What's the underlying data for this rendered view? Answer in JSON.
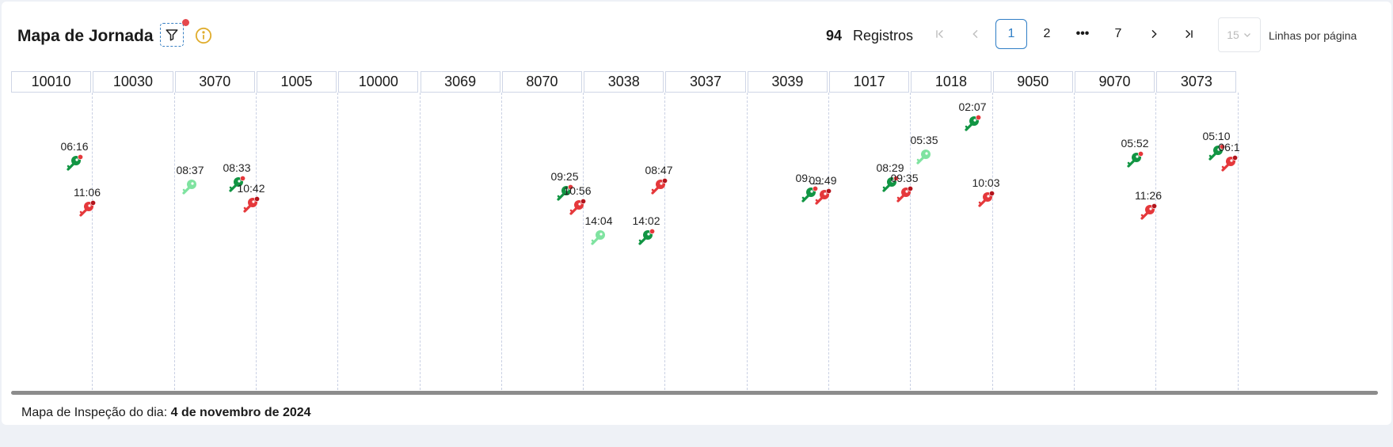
{
  "header": {
    "title": "Mapa de Jornada",
    "record_count": "94",
    "record_label": "Registros",
    "pagination": {
      "first_icon": "first-page-icon",
      "prev_icon": "prev-page-icon",
      "pages": [
        "1",
        "2",
        "•••",
        "7"
      ],
      "active_page": "1",
      "next_icon": "next-page-icon",
      "last_icon": "last-page-icon"
    },
    "rows_per_page_value": "15",
    "rows_per_page_label": "Linhas por página"
  },
  "columns": [
    "10010",
    "10030",
    "3070",
    "1005",
    "10000",
    "3069",
    "8070",
    "3038",
    "3037",
    "3039",
    "1017",
    "1018",
    "9050",
    "9070",
    "3073"
  ],
  "events": [
    {
      "column": 0,
      "time": "06:16",
      "status": "green",
      "slot": 0
    },
    {
      "column": 0,
      "time": "11:06",
      "status": "red",
      "slot": 1
    },
    {
      "column": 2,
      "time": "08:37",
      "status": "lightgreen",
      "slot": 0
    },
    {
      "column": 2,
      "time": "08:33",
      "status": "green",
      "slot": 1
    },
    {
      "column": 2,
      "time": "10:42",
      "status": "red",
      "slot": 2
    },
    {
      "column": 6,
      "time": "09:25",
      "status": "green",
      "slot": 0
    },
    {
      "column": 6,
      "time": "10:56",
      "status": "red",
      "slot": 1
    },
    {
      "column": 7,
      "time": "14:04",
      "status": "lightgreen",
      "slot": 0
    },
    {
      "column": 7,
      "time": "14:02",
      "status": "green",
      "slot": 1
    },
    {
      "column": 7,
      "time": "08:47",
      "status": "red",
      "slot": 2
    },
    {
      "column": 9,
      "time": "09:__",
      "status": "green",
      "slot": 0
    },
    {
      "column": 9,
      "time": "09:49",
      "status": "red",
      "slot": 1
    },
    {
      "column": 10,
      "time": "08:29",
      "status": "green",
      "slot": 0
    },
    {
      "column": 10,
      "time": "09:35",
      "status": "red",
      "slot": 1
    },
    {
      "column": 11,
      "time": "05:35",
      "status": "lightgreen",
      "slot": 0
    },
    {
      "column": 11,
      "time": "02:07",
      "status": "green",
      "slot": 1
    },
    {
      "column": 11,
      "time": "10:03",
      "status": "red",
      "slot": 2
    },
    {
      "column": 13,
      "time": "05:52",
      "status": "green",
      "slot": 0
    },
    {
      "column": 13,
      "time": "11:26",
      "status": "red",
      "slot": 1
    },
    {
      "column": 14,
      "time": "05:10",
      "status": "green",
      "slot": 0
    },
    {
      "column": 14,
      "time": "06:1",
      "status": "red",
      "slot": 1
    }
  ],
  "colors": {
    "green": "#119543",
    "lightgreen": "#7fe3a0",
    "red": "#e5383b",
    "accent": "#2f7ec6"
  },
  "footer": {
    "label": "Mapa de Inspeção do dia:",
    "date": "4 de novembro de 2024"
  }
}
